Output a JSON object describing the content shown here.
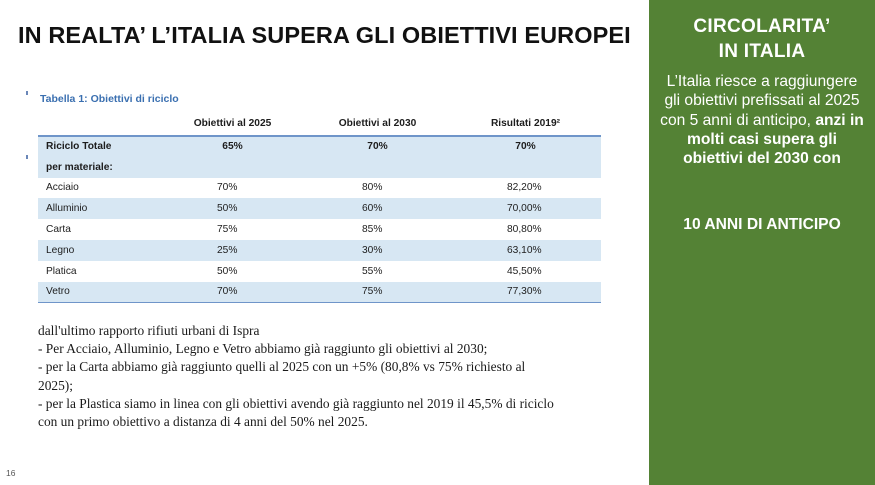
{
  "title": "IN REALTA’ L’ITALIA SUPERA GLI OBIETTIVI EUROPEI",
  "table": {
    "caption": "Tabella 1: Obiettivi di riciclo",
    "headers": [
      "",
      "Obiettivi al 2025",
      "Obiettivi al 2030",
      "Risultati 2019²"
    ],
    "rows": [
      [
        "Riciclo Totale",
        "65%",
        "70%",
        "70%"
      ],
      [
        "per materiale:",
        "",
        "",
        ""
      ],
      [
        "Acciaio",
        "70%",
        "80%",
        "82,20%"
      ],
      [
        "Alluminio",
        "50%",
        "60%",
        "70,00%"
      ],
      [
        "Carta",
        "75%",
        "85%",
        "80,80%"
      ],
      [
        "Legno",
        "25%",
        "30%",
        "63,10%"
      ],
      [
        "Platica",
        "50%",
        "55%",
        "45,50%"
      ],
      [
        "Vetro",
        "70%",
        "75%",
        "77,30%"
      ]
    ]
  },
  "note": {
    "lines": [
      "dall'ultimo rapporto rifiuti urbani di Ispra",
      "- Per Acciaio, Alluminio, Legno e Vetro abbiamo già raggiunto gli obiettivi al 2030;",
      "- per la Carta abbiamo già raggiunto quelli al 2025 con un +5% (80,8% vs 75% richiesto al",
      "2025);",
      "- per la Plastica siamo in linea con gli obiettivi avendo già raggiunto nel 2019 il 45,5% di riciclo",
      "con un primo obiettivo a distanza di 4 anni del 50% nel 2025."
    ]
  },
  "page_number": "16",
  "side_panel": {
    "title_line1": "CIRCOLARITA’",
    "title_line2": "IN ITALIA",
    "body_normal": "L’Italia riesce a raggiungere gli obiettivi prefissati al 2025  con 5 anni di anticipo,",
    "body_bold": " anzi in molti casi supera gli obiettivi del 2030 con",
    "highlight": "10 ANNI DI ANTICIPO",
    "background_color": "#548235",
    "text_color": "#ffffff"
  },
  "colors": {
    "table_shading": "#d7e7f3",
    "table_rule": "#6f95c9",
    "caption": "#3a6fb0"
  }
}
